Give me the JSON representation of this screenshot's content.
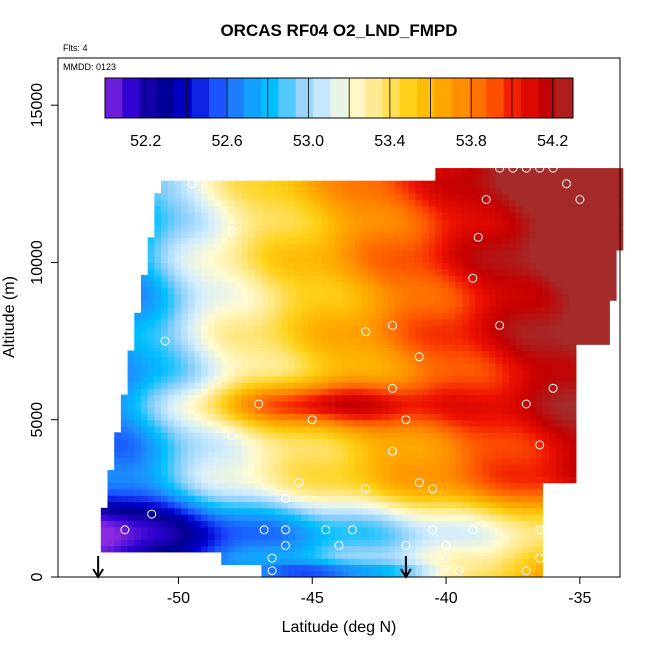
{
  "chart_data": {
    "type": "heatmap",
    "title": "ORCAS RF04 O2_LND_FMPD",
    "flights_label": "Flts: 4",
    "date_label": "MMDD: 0123",
    "xlabel": "Latitude (deg N)",
    "ylabel": "Altitude (m)",
    "xlim": [
      -54.5,
      -33.5
    ],
    "ylim": [
      0,
      16500
    ],
    "x_ticks": [
      -50,
      -45,
      -40,
      -35
    ],
    "x_tick_labels": [
      "-50",
      "-45",
      "-40",
      "-35"
    ],
    "y_ticks": [
      0,
      5000,
      10000,
      15000
    ],
    "y_tick_labels": [
      "0",
      "5000",
      "10000",
      "15000"
    ],
    "colorbar": {
      "min": 52.0,
      "max": 54.3,
      "ticks": [
        52.2,
        52.6,
        53.0,
        53.4,
        53.8,
        54.2
      ],
      "tick_labels": [
        "52.2",
        "52.6",
        "53.0",
        "53.4",
        "53.8",
        "54.2"
      ],
      "colors": [
        "#8a2be2",
        "#2d00d0",
        "#00008b",
        "#0000cd",
        "#1a4fff",
        "#1e90ff",
        "#00bfff",
        "#87cefa",
        "#d0ecff",
        "#fffbd0",
        "#ffe680",
        "#ffd21a",
        "#ffb000",
        "#ff8c00",
        "#ff5a00",
        "#ee1100",
        "#c40000",
        "#a52a2a"
      ]
    },
    "field": {
      "description_units": "O2 value grid: rows are altitude bins, columns are latitude bins",
      "lat_centers": [
        -53.0,
        -52.0,
        -51.0,
        -50.0,
        -49.0,
        -48.0,
        -47.0,
        -46.0,
        -45.0,
        -44.0,
        -43.0,
        -42.0,
        -41.0,
        -40.0,
        -39.0,
        -38.0,
        -37.0,
        -36.0,
        -35.0,
        -34.0
      ],
      "alt_centers": [
        500,
        1500,
        2500,
        3500,
        4500,
        5500,
        6500,
        7500,
        8500,
        9500,
        10500,
        11500,
        12500
      ],
      "coverage_note": "data region spans latitude -53.2 to -33.5 at low/mid altitudes and up to 13000 m near -38 to -35"
    },
    "sample_points": [
      {
        "lat": -46.5,
        "alt": 200
      },
      {
        "lat": -46.5,
        "alt": 600
      },
      {
        "lat": -46.0,
        "alt": 1000
      },
      {
        "lat": -46.8,
        "alt": 1500
      },
      {
        "lat": -46.0,
        "alt": 1500
      },
      {
        "lat": -46.0,
        "alt": 2500
      },
      {
        "lat": -45.5,
        "alt": 3000
      },
      {
        "lat": -44.5,
        "alt": 1500
      },
      {
        "lat": -44.0,
        "alt": 1000
      },
      {
        "lat": -43.5,
        "alt": 1500
      },
      {
        "lat": -43.0,
        "alt": 2800
      },
      {
        "lat": -42.0,
        "alt": 4000
      },
      {
        "lat": -42.0,
        "alt": 6000
      },
      {
        "lat": -41.5,
        "alt": 5000
      },
      {
        "lat": -41.0,
        "alt": 7000
      },
      {
        "lat": -40.5,
        "alt": 2800
      },
      {
        "lat": -40.5,
        "alt": 1500
      },
      {
        "lat": -40.0,
        "alt": 1000
      },
      {
        "lat": -40.0,
        "alt": 600
      },
      {
        "lat": -39.5,
        "alt": 200
      },
      {
        "lat": -39.0,
        "alt": 1500
      },
      {
        "lat": -38.8,
        "alt": 10800
      },
      {
        "lat": -38.5,
        "alt": 12000
      },
      {
        "lat": -38.0,
        "alt": 13000
      },
      {
        "lat": -37.5,
        "alt": 13000
      },
      {
        "lat": -37.0,
        "alt": 13000
      },
      {
        "lat": -36.5,
        "alt": 13000
      },
      {
        "lat": -36.0,
        "alt": 13000
      },
      {
        "lat": -35.5,
        "alt": 12500
      },
      {
        "lat": -35.0,
        "alt": 12000
      },
      {
        "lat": -36.5,
        "alt": 4200
      },
      {
        "lat": -36.0,
        "alt": 6000
      },
      {
        "lat": -36.5,
        "alt": 1500
      },
      {
        "lat": -36.5,
        "alt": 600
      },
      {
        "lat": -37.0,
        "alt": 200
      },
      {
        "lat": -43.0,
        "alt": 7800
      },
      {
        "lat": -42.0,
        "alt": 8000
      },
      {
        "lat": -41.0,
        "alt": 3000
      },
      {
        "lat": -38.0,
        "alt": 8000
      },
      {
        "lat": -37.0,
        "alt": 5500
      },
      {
        "lat": -45.0,
        "alt": 5000
      },
      {
        "lat": -47.0,
        "alt": 5500
      },
      {
        "lat": -48.0,
        "alt": 4500
      },
      {
        "lat": -52.0,
        "alt": 1500
      },
      {
        "lat": -51.0,
        "alt": 2000
      },
      {
        "lat": -49.5,
        "alt": 12500
      },
      {
        "lat": -48.0,
        "alt": 11000
      },
      {
        "lat": -39.0,
        "alt": 9500
      },
      {
        "lat": -50.5,
        "alt": 7500
      },
      {
        "lat": -41.5,
        "alt": 1000
      }
    ],
    "arrows_lat": [
      -53.0,
      -41.5
    ],
    "grid": false,
    "legend": "colorbar-top"
  }
}
